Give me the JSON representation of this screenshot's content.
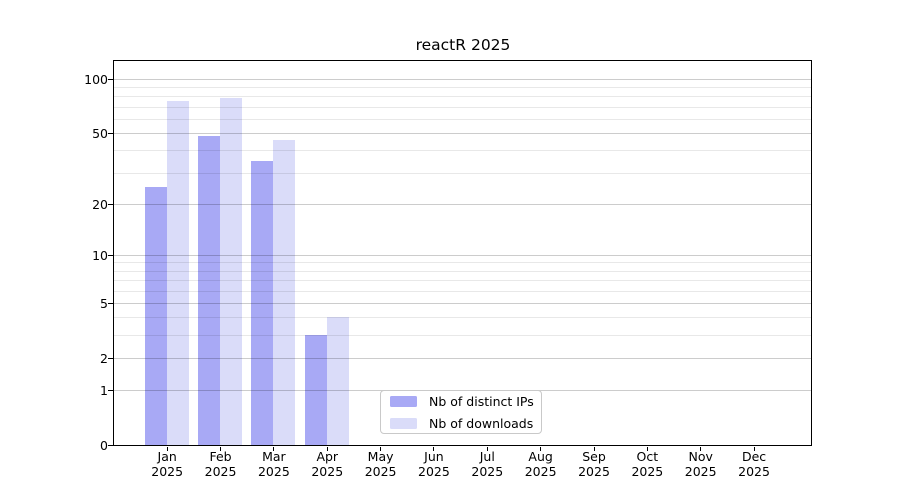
{
  "window": {
    "background": "#ffffff"
  },
  "chart_data": {
    "type": "bar",
    "title": "reactR 2025",
    "categories": [
      "Jan",
      "Feb",
      "Mar",
      "Apr",
      "May",
      "Jun",
      "Jul",
      "Aug",
      "Sep",
      "Oct",
      "Nov",
      "Dec"
    ],
    "category_year": "2025",
    "series": [
      {
        "name": "Nb of distinct IPs",
        "color": "#a8a9f5",
        "values": [
          25,
          48,
          35,
          3,
          0,
          0,
          0,
          0,
          0,
          0,
          0,
          0
        ]
      },
      {
        "name": "Nb of downloads",
        "color": "#dadcf9",
        "values": [
          76,
          78,
          46,
          4,
          0,
          0,
          0,
          0,
          0,
          0,
          0,
          0
        ]
      }
    ],
    "xlabel": "",
    "ylabel": "",
    "y_scale": "log1p",
    "ylim": [
      0,
      125.7
    ],
    "y_major_ticks": [
      0,
      1,
      2,
      5,
      10,
      20,
      50,
      100
    ],
    "y_minor_gridlines": [
      3,
      4,
      6,
      7,
      8,
      9,
      30,
      40,
      60,
      70,
      80,
      90
    ],
    "grid": "horizontal, drawn above bars",
    "legend_position": "lower center",
    "colors": {
      "axis": "#000000",
      "text": "#000000",
      "grid_major": "#d1d1d1",
      "grid_minor": "#e8e8e8",
      "legend_border": "#c9c9c9"
    }
  }
}
